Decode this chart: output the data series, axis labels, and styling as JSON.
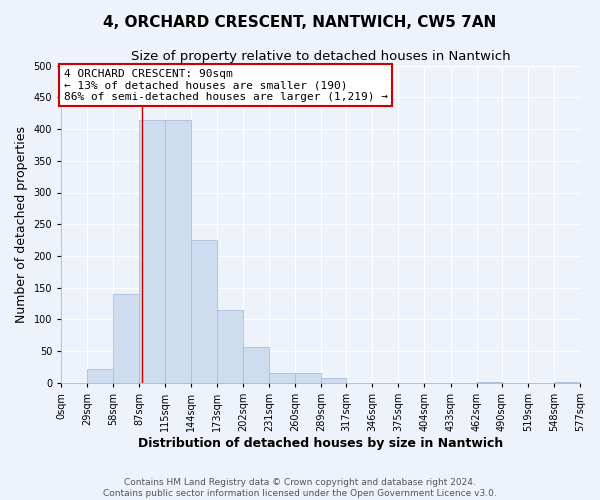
{
  "title": "4, ORCHARD CRESCENT, NANTWICH, CW5 7AN",
  "subtitle": "Size of property relative to detached houses in Nantwich",
  "xlabel": "Distribution of detached houses by size in Nantwich",
  "ylabel": "Number of detached properties",
  "bar_color": "#cddcee",
  "bar_edge_color": "#aabfd8",
  "bin_edges": [
    0,
    29,
    58,
    87,
    115,
    144,
    173,
    202,
    231,
    260,
    289,
    317,
    346,
    375,
    404,
    433,
    462,
    490,
    519,
    548,
    577
  ],
  "bin_labels": [
    "0sqm",
    "29sqm",
    "58sqm",
    "87sqm",
    "115sqm",
    "144sqm",
    "173sqm",
    "202sqm",
    "231sqm",
    "260sqm",
    "289sqm",
    "317sqm",
    "346sqm",
    "375sqm",
    "404sqm",
    "433sqm",
    "462sqm",
    "490sqm",
    "519sqm",
    "548sqm",
    "577sqm"
  ],
  "counts": [
    0,
    22,
    140,
    415,
    415,
    225,
    115,
    57,
    15,
    15,
    7,
    0,
    0,
    0,
    0,
    0,
    2,
    0,
    0,
    2
  ],
  "ylim": [
    0,
    500
  ],
  "yticks": [
    0,
    50,
    100,
    150,
    200,
    250,
    300,
    350,
    400,
    450,
    500
  ],
  "annotation_text": "4 ORCHARD CRESCENT: 90sqm\n← 13% of detached houses are smaller (190)\n86% of semi-detached houses are larger (1,219) →",
  "annotation_box_color": "#ffffff",
  "annotation_border_color": "#cc0000",
  "property_line_x": 90,
  "footer_line1": "Contains HM Land Registry data © Crown copyright and database right 2024.",
  "footer_line2": "Contains public sector information licensed under the Open Government Licence v3.0.",
  "background_color": "#edf2fb",
  "grid_color": "#ffffff",
  "title_fontsize": 11,
  "subtitle_fontsize": 9.5,
  "axis_label_fontsize": 9,
  "tick_fontsize": 7,
  "annotation_fontsize": 8,
  "footer_fontsize": 6.5
}
